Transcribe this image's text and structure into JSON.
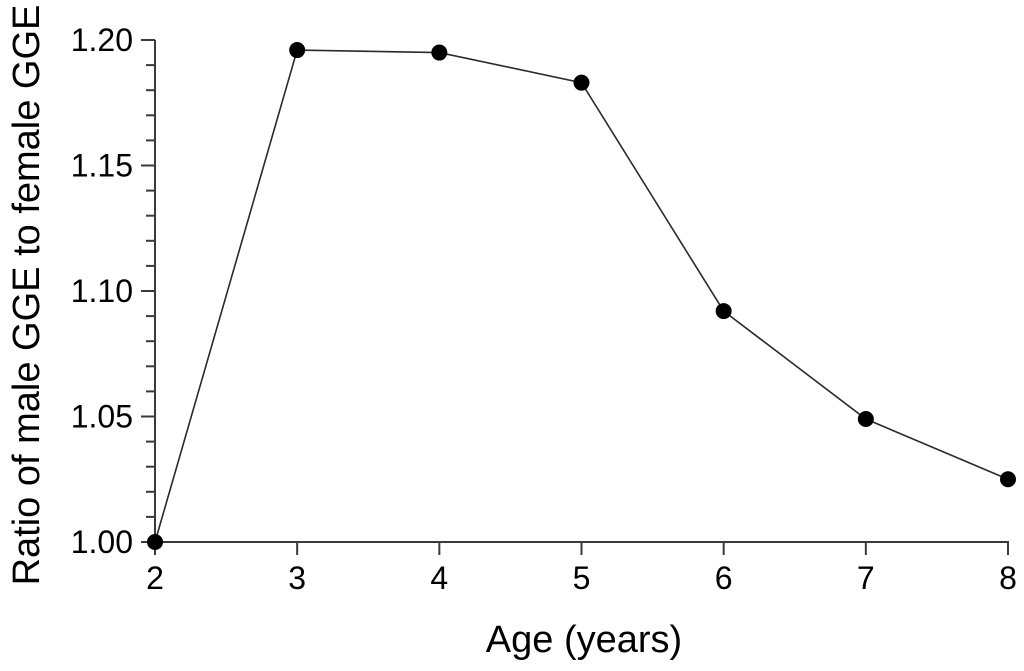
{
  "figure": {
    "background_color": "#ffffff",
    "axis_color": "#3a3a3a",
    "line_color": "#2a2a2a",
    "marker_color": "#000000",
    "text_color": "#000000"
  },
  "chart_data": {
    "type": "line",
    "title": "",
    "xlabel": "Age (years)",
    "ylabel": "Ratio of male GGE to female GGE",
    "x": [
      2,
      3,
      4,
      5,
      6,
      7,
      8
    ],
    "values": [
      1.0,
      1.196,
      1.195,
      1.183,
      1.092,
      1.049,
      1.025
    ],
    "xlim": [
      2,
      8
    ],
    "ylim": [
      1.0,
      1.2
    ],
    "x_ticks": [
      2,
      3,
      4,
      5,
      6,
      7,
      8
    ],
    "x_tick_labels": [
      "2",
      "3",
      "4",
      "5",
      "6",
      "7",
      "8"
    ],
    "y_major_ticks": [
      1.0,
      1.05,
      1.1,
      1.15,
      1.2
    ],
    "y_tick_labels": [
      "1.00",
      "1.05",
      "1.10",
      "1.15",
      "1.20"
    ],
    "y_minor_step": 0.01,
    "grid": false,
    "legend": null,
    "marker": "filled-circle",
    "series_name": "Ratio of male GGE to female GGE vs age"
  }
}
